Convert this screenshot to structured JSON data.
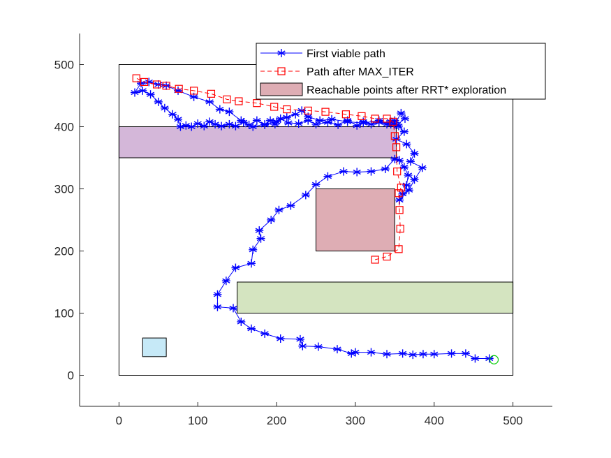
{
  "chart_data": {
    "type": "line",
    "xlim": [
      -50,
      550
    ],
    "ylim": [
      -50,
      550
    ],
    "x_ticks": [
      0,
      100,
      200,
      300,
      400,
      500
    ],
    "y_ticks": [
      0,
      100,
      200,
      300,
      400,
      500
    ],
    "x_tick_labels": [
      "0",
      "100",
      "200",
      "300",
      "400",
      "500"
    ],
    "y_tick_labels": [
      "0",
      "100",
      "200",
      "300",
      "400",
      "500"
    ],
    "grid": false,
    "legend_position": "top-right",
    "boundary": {
      "x": [
        0,
        500
      ],
      "y": [
        0,
        500
      ],
      "stroke": "#000000"
    },
    "obstacles": [
      {
        "x": 0,
        "y": 350,
        "width": 352,
        "height": 50,
        "fill": "#d4b7d9"
      },
      {
        "x": 250,
        "y": 200,
        "width": 100,
        "height": 100,
        "fill": "#deadb4"
      },
      {
        "x": 150,
        "y": 100,
        "width": 350,
        "height": 50,
        "fill": "#d4e4c0"
      },
      {
        "x": 30,
        "y": 30,
        "width": 30,
        "height": 30,
        "fill": "#c6e9f7"
      }
    ],
    "goal": {
      "x": 476,
      "y": 25,
      "color": "#00cc00"
    },
    "series": [
      {
        "name": "First viable path",
        "color": "#0000ff",
        "style": "solid",
        "marker": "asterisk",
        "points": [
          [
            470,
            27
          ],
          [
            452,
            27
          ],
          [
            440,
            35
          ],
          [
            422,
            35
          ],
          [
            400,
            34
          ],
          [
            386,
            34
          ],
          [
            373,
            33
          ],
          [
            360,
            35
          ],
          [
            340,
            34
          ],
          [
            320,
            37
          ],
          [
            300,
            37
          ],
          [
            295,
            35
          ],
          [
            277,
            42
          ],
          [
            253,
            46
          ],
          [
            233,
            47
          ],
          [
            230,
            58
          ],
          [
            205,
            59
          ],
          [
            185,
            67
          ],
          [
            168,
            75
          ],
          [
            155,
            86
          ],
          [
            145,
            108
          ],
          [
            125,
            110
          ],
          [
            125,
            130
          ],
          [
            136,
            152
          ],
          [
            148,
            173
          ],
          [
            168,
            180
          ],
          [
            170,
            202
          ],
          [
            180,
            220
          ],
          [
            178,
            233
          ],
          [
            193,
            250
          ],
          [
            203,
            266
          ],
          [
            218,
            273
          ],
          [
            237,
            290
          ],
          [
            250,
            307
          ],
          [
            265,
            320
          ],
          [
            285,
            328
          ],
          [
            302,
            327
          ],
          [
            320,
            328
          ],
          [
            338,
            332
          ],
          [
            350,
            348
          ],
          [
            356,
            346
          ],
          [
            362,
            335
          ],
          [
            367,
            322
          ],
          [
            365,
            306
          ],
          [
            360,
            292
          ],
          [
            356,
            282
          ],
          [
            368,
            298
          ],
          [
            375,
            315
          ],
          [
            385,
            334
          ],
          [
            370,
            344
          ],
          [
            375,
            357
          ],
          [
            365,
            372
          ],
          [
            352,
            380
          ],
          [
            362,
            392
          ],
          [
            353,
            403
          ],
          [
            363,
            413
          ],
          [
            358,
            422
          ],
          [
            350,
            404
          ],
          [
            340,
            404
          ],
          [
            330,
            407
          ],
          [
            320,
            404
          ],
          [
            310,
            408
          ],
          [
            302,
            402
          ],
          [
            290,
            410
          ],
          [
            278,
            403
          ],
          [
            265,
            407
          ],
          [
            250,
            404
          ],
          [
            240,
            410
          ],
          [
            228,
            405
          ],
          [
            215,
            406
          ],
          [
            205,
            413
          ],
          [
            198,
            404
          ],
          [
            192,
            410
          ],
          [
            185,
            403
          ],
          [
            175,
            410
          ],
          [
            165,
            403
          ],
          [
            158,
            407
          ],
          [
            148,
            401
          ],
          [
            140,
            404
          ],
          [
            130,
            401
          ],
          [
            122,
            404
          ],
          [
            115,
            408
          ],
          [
            108,
            401
          ],
          [
            100,
            405
          ],
          [
            92,
            400
          ],
          [
            85,
            402
          ],
          [
            78,
            400
          ],
          [
            75,
            412
          ],
          [
            68,
            420
          ],
          [
            58,
            430
          ],
          [
            50,
            440
          ],
          [
            40,
            452
          ],
          [
            30,
            458
          ],
          [
            20,
            455
          ],
          [
            28,
            470
          ],
          [
            38,
            472
          ],
          [
            50,
            468
          ],
          [
            60,
            466
          ],
          [
            75,
            458
          ],
          [
            95,
            448
          ],
          [
            115,
            440
          ],
          [
            128,
            428
          ],
          [
            140,
            424
          ],
          [
            155,
            410
          ],
          [
            170,
            400
          ],
          [
            185,
            404
          ],
          [
            200,
            408
          ],
          [
            213,
            415
          ],
          [
            224,
            420
          ],
          [
            232,
            426
          ],
          [
            240,
            416
          ],
          [
            255,
            410
          ],
          [
            270,
            412
          ],
          [
            290,
            408
          ],
          [
            310,
            406
          ],
          [
            330,
            410
          ],
          [
            345,
            404
          ],
          [
            355,
            401
          ],
          [
            350,
            410
          ],
          [
            345,
            408
          ]
        ]
      },
      {
        "name": "Path after MAX_ITER",
        "color": "#ff0000",
        "style": "dashed",
        "marker": "square",
        "points": [
          [
            325,
            186
          ],
          [
            340,
            191
          ],
          [
            355,
            203
          ],
          [
            357,
            236
          ],
          [
            356,
            266
          ],
          [
            355,
            293
          ],
          [
            358,
            302
          ],
          [
            353,
            328
          ],
          [
            352,
            367
          ],
          [
            350,
            385
          ],
          [
            348,
            408
          ],
          [
            340,
            413
          ],
          [
            325,
            413
          ],
          [
            308,
            417
          ],
          [
            288,
            420
          ],
          [
            262,
            424
          ],
          [
            240,
            426
          ],
          [
            213,
            428
          ],
          [
            197,
            432
          ],
          [
            175,
            438
          ],
          [
            152,
            441
          ],
          [
            137,
            444
          ],
          [
            117,
            453
          ],
          [
            95,
            458
          ],
          [
            76,
            461
          ],
          [
            60,
            466
          ],
          [
            48,
            468
          ],
          [
            32,
            472
          ],
          [
            22,
            478
          ]
        ]
      }
    ],
    "legend": [
      {
        "label": "First viable path",
        "kind": "line-asterisk",
        "color": "#0000ff"
      },
      {
        "label": "Path after MAX_ITER",
        "kind": "dashed-square",
        "color": "#ff0000"
      },
      {
        "label": "Reachable points after RRT* exploration",
        "kind": "patch",
        "color": "#deadb4"
      }
    ]
  }
}
